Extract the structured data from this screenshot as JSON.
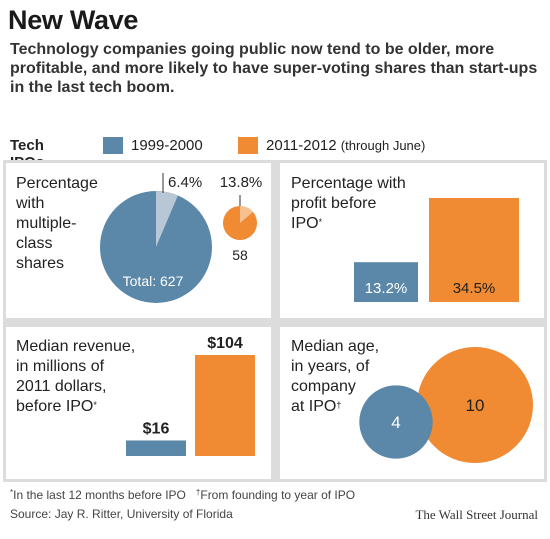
{
  "header": {
    "title": "New Wave",
    "subtitle": "Technology companies going public now tend to be older, more profitable, and more likely to have super-voting shares than start-ups in the last tech boom."
  },
  "legend": {
    "heading": "Tech IPOs",
    "items": [
      {
        "label": "1999-2000",
        "sub": "",
        "color": "#5b87a8"
      },
      {
        "label": "2011-2012",
        "sub": "(through June)",
        "color": "#f08a33"
      }
    ]
  },
  "colors": {
    "blue": "#5b87a8",
    "orange": "#f08a33",
    "light_blue": "#b7c7d6",
    "panel_bg": "#dcdcdc"
  },
  "panels": {
    "shares": {
      "lines": [
        "Percentage",
        "with",
        "multiple-",
        "class",
        "shares"
      ]
    },
    "profit": {
      "lines": [
        "Percentage with",
        "profit before",
        "IPO"
      ],
      "mark": "*"
    },
    "revenue": {
      "lines": [
        "Median revenue,",
        "in millions of",
        "2011 dollars,",
        "before IPO"
      ],
      "mark": "*"
    },
    "age": {
      "lines": [
        "Median age,",
        "in years, of",
        "company",
        "at IPO"
      ],
      "mark": "†"
    }
  },
  "chart_data": [
    {
      "type": "pie",
      "title": "Percentage with multiple-class shares",
      "series": [
        {
          "name": "1999-2000",
          "share_pct": 6.4,
          "label": "6.4%",
          "count": 627,
          "count_label": "Total: 627"
        },
        {
          "name": "2011-2012 (through June)",
          "share_pct": 13.8,
          "label": "13.8%",
          "count": 58,
          "count_label": "58"
        }
      ]
    },
    {
      "type": "bar",
      "title": "Percentage with profit before IPO",
      "categories": [
        "1999-2000",
        "2011-2012 (through June)"
      ],
      "values": [
        13.2,
        34.5
      ],
      "labels": [
        "13.2%",
        "34.5%"
      ]
    },
    {
      "type": "bar",
      "title": "Median revenue, in millions of 2011 dollars, before IPO",
      "categories": [
        "1999-2000",
        "2011-2012 (through June)"
      ],
      "values": [
        16,
        104
      ],
      "labels": [
        "$16",
        "$104"
      ]
    },
    {
      "type": "scatter",
      "title": "Median age, in years, of company at IPO",
      "categories": [
        "1999-2000",
        "2011-2012 (through June)"
      ],
      "values": [
        4,
        10
      ],
      "labels": [
        "4",
        "10"
      ]
    }
  ],
  "footnotes": {
    "note1_mark": "*",
    "note1": "In the last 12 months before IPO",
    "note2_mark": "†",
    "note2": "From founding to year of IPO",
    "source": "Source: Jay R. Ritter, University of Florida",
    "credit": "The Wall Street Journal"
  }
}
